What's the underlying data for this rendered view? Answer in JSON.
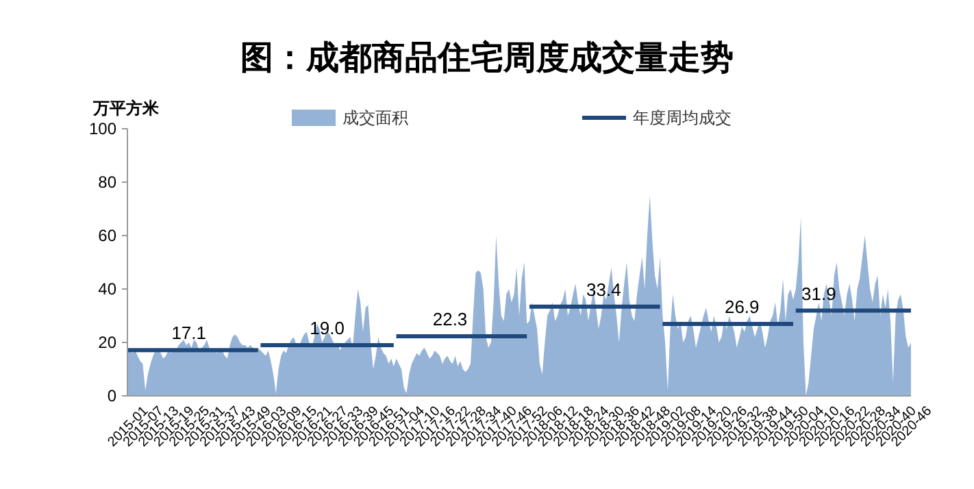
{
  "chart_data": {
    "type": "area",
    "title": "图：成都商品住宅周度成交量走势",
    "ylabel": "万平方米",
    "categories": [
      "2015-01",
      null,
      null,
      null,
      null,
      null,
      "2015-07",
      null,
      null,
      null,
      null,
      null,
      "2015-13",
      null,
      null,
      null,
      null,
      null,
      "2015-19",
      null,
      null,
      null,
      null,
      null,
      "2015-25",
      null,
      null,
      null,
      null,
      null,
      "2015-31",
      null,
      null,
      null,
      null,
      null,
      "2015-37",
      null,
      null,
      null,
      null,
      null,
      "2015-43",
      null,
      null,
      null,
      null,
      null,
      "2015-49",
      null,
      null,
      null,
      null,
      null,
      "2016-03",
      null,
      null,
      null,
      null,
      null,
      "2016-09",
      null,
      null,
      null,
      null,
      null,
      "2016-15",
      null,
      null,
      null,
      null,
      null,
      "2016-21",
      null,
      null,
      null,
      null,
      null,
      "2016-27",
      null,
      null,
      null,
      null,
      null,
      "2016-33",
      null,
      null,
      null,
      null,
      null,
      "2016-39",
      null,
      null,
      null,
      null,
      null,
      "2016-45",
      null,
      null,
      null,
      null,
      null,
      "2016-51",
      null,
      null,
      null,
      null,
      null,
      "2017-04",
      null,
      null,
      null,
      null,
      null,
      "2017-10",
      null,
      null,
      null,
      null,
      null,
      "2017-16",
      null,
      null,
      null,
      null,
      null,
      "2017-22",
      null,
      null,
      null,
      null,
      null,
      "2017-28",
      null,
      null,
      null,
      null,
      null,
      "2017-34",
      null,
      null,
      null,
      null,
      null,
      "2017-40",
      null,
      null,
      null,
      null,
      null,
      "2017-46",
      null,
      null,
      null,
      null,
      null,
      "2017-52",
      null,
      null,
      null,
      null,
      null,
      "2018-06",
      null,
      null,
      null,
      null,
      null,
      "2018-12",
      null,
      null,
      null,
      null,
      null,
      "2018-18",
      null,
      null,
      null,
      null,
      null,
      "2018-24",
      null,
      null,
      null,
      null,
      null,
      "2018-30",
      null,
      null,
      null,
      null,
      null,
      "2018-36",
      null,
      null,
      null,
      null,
      null,
      "2018-42",
      null,
      null,
      null,
      null,
      null,
      "2018-48",
      null,
      null,
      null,
      null,
      null,
      "2019-02",
      null,
      null,
      null,
      null,
      null,
      "2019-08",
      null,
      null,
      null,
      null,
      null,
      "2019-14",
      null,
      null,
      null,
      null,
      null,
      "2019-20",
      null,
      null,
      null,
      null,
      null,
      "2019-26",
      null,
      null,
      null,
      null,
      null,
      "2019-32",
      null,
      null,
      null,
      null,
      null,
      "2019-38",
      null,
      null,
      null,
      null,
      null,
      "2019-44",
      null,
      null,
      null,
      null,
      null,
      "2019-50",
      null,
      null,
      null,
      null,
      null,
      "2020-04",
      null,
      null,
      null,
      null,
      null,
      "2020-10",
      null,
      null,
      null,
      null,
      null,
      "2020-16",
      null,
      null,
      null,
      null,
      null,
      "2020-22",
      null,
      null,
      null,
      null,
      null,
      "2020-28",
      null,
      null,
      null,
      null,
      null,
      "2020-34",
      null,
      null,
      null,
      null,
      null,
      "2020-40",
      null,
      null,
      null,
      null,
      null,
      "2020-46"
    ],
    "series": [
      {
        "name": "成交面积",
        "color": "#95b3d7",
        "values": [
          18,
          17,
          16,
          17,
          15,
          13,
          12,
          2,
          8,
          12,
          15,
          17,
          18,
          16,
          14,
          15,
          17,
          16,
          18,
          17,
          19,
          20,
          21,
          19,
          20,
          18,
          21,
          20,
          17,
          18,
          19,
          21,
          18,
          17,
          18,
          16,
          18,
          17,
          15,
          14,
          19,
          22,
          23,
          22,
          20,
          19,
          19,
          18,
          19,
          18,
          17,
          18,
          17,
          16,
          15,
          17,
          13,
          8,
          1,
          10,
          15,
          17,
          16,
          19,
          21,
          22,
          19,
          18,
          21,
          23,
          24,
          20,
          18,
          22,
          27,
          25,
          20,
          22,
          24,
          23,
          21,
          19,
          20,
          17,
          19,
          20,
          21,
          22,
          18,
          30,
          40,
          35,
          24,
          33,
          34,
          20,
          10,
          15,
          22,
          18,
          16,
          15,
          12,
          14,
          11,
          14,
          12,
          10,
          3,
          1,
          8,
          12,
          14,
          16,
          15,
          17,
          18,
          16,
          14,
          15,
          17,
          16,
          15,
          12,
          14,
          15,
          13,
          12,
          15,
          11,
          13,
          10,
          9,
          10,
          12,
          30,
          46,
          47,
          46,
          40,
          22,
          18,
          20,
          35,
          60,
          42,
          30,
          28,
          38,
          40,
          35,
          38,
          48,
          30,
          44,
          50,
          27,
          28,
          35,
          30,
          25,
          12,
          8,
          20,
          30,
          32,
          35,
          28,
          30,
          34,
          36,
          40,
          30,
          33,
          38,
          42,
          35,
          30,
          38,
          36,
          28,
          34,
          40,
          33,
          25,
          30,
          38,
          36,
          42,
          48,
          38,
          30,
          20,
          33,
          42,
          50,
          36,
          30,
          28,
          38,
          45,
          52,
          40,
          60,
          75,
          58,
          45,
          40,
          52,
          30,
          20,
          2,
          25,
          38,
          30,
          25,
          28,
          20,
          22,
          28,
          30,
          25,
          18,
          22,
          26,
          30,
          33,
          28,
          24,
          30,
          26,
          20,
          22,
          28,
          25,
          30,
          27,
          24,
          18,
          22,
          26,
          24,
          28,
          30,
          26,
          22,
          25,
          28,
          24,
          18,
          22,
          28,
          30,
          35,
          26,
          32,
          44,
          28,
          38,
          40,
          36,
          40,
          50,
          67,
          20,
          0,
          5,
          15,
          25,
          30,
          35,
          28,
          38,
          42,
          36,
          30,
          45,
          50,
          40,
          35,
          30,
          38,
          42,
          36,
          28,
          40,
          44,
          52,
          60,
          50,
          40,
          35,
          42,
          45,
          30,
          38,
          33,
          40,
          28,
          5,
          30,
          36,
          38,
          32,
          22,
          18,
          20
        ]
      },
      {
        "name": "年度周均成交",
        "type": "line",
        "color": "#1f497d",
        "values": [
          17.1,
          17.1,
          17.1,
          17.1,
          17.1,
          17.1,
          17.1,
          17.1,
          17.1,
          17.1,
          17.1,
          17.1,
          17.1,
          17.1,
          17.1,
          17.1,
          17.1,
          17.1,
          17.1,
          17.1,
          17.1,
          17.1,
          17.1,
          17.1,
          17.1,
          17.1,
          17.1,
          17.1,
          17.1,
          17.1,
          17.1,
          17.1,
          17.1,
          17.1,
          17.1,
          17.1,
          17.1,
          17.1,
          17.1,
          17.1,
          17.1,
          17.1,
          17.1,
          17.1,
          17.1,
          17.1,
          17.1,
          17.1,
          17.1,
          17.1,
          17.1,
          17.1,
          19.0,
          19.0,
          19.0,
          19.0,
          19.0,
          19.0,
          19.0,
          19.0,
          19.0,
          19.0,
          19.0,
          19.0,
          19.0,
          19.0,
          19.0,
          19.0,
          19.0,
          19.0,
          19.0,
          19.0,
          19.0,
          19.0,
          19.0,
          19.0,
          19.0,
          19.0,
          19.0,
          19.0,
          19.0,
          19.0,
          19.0,
          19.0,
          19.0,
          19.0,
          19.0,
          19.0,
          19.0,
          19.0,
          19.0,
          19.0,
          19.0,
          19.0,
          19.0,
          19.0,
          19.0,
          19.0,
          19.0,
          19.0,
          19.0,
          19.0,
          19.0,
          19.0,
          19.0,
          22.3,
          22.3,
          22.3,
          22.3,
          22.3,
          22.3,
          22.3,
          22.3,
          22.3,
          22.3,
          22.3,
          22.3,
          22.3,
          22.3,
          22.3,
          22.3,
          22.3,
          22.3,
          22.3,
          22.3,
          22.3,
          22.3,
          22.3,
          22.3,
          22.3,
          22.3,
          22.3,
          22.3,
          22.3,
          22.3,
          22.3,
          22.3,
          22.3,
          22.3,
          22.3,
          22.3,
          22.3,
          22.3,
          22.3,
          22.3,
          22.3,
          22.3,
          22.3,
          22.3,
          22.3,
          22.3,
          22.3,
          22.3,
          22.3,
          22.3,
          22.3,
          22.3,
          33.4,
          33.4,
          33.4,
          33.4,
          33.4,
          33.4,
          33.4,
          33.4,
          33.4,
          33.4,
          33.4,
          33.4,
          33.4,
          33.4,
          33.4,
          33.4,
          33.4,
          33.4,
          33.4,
          33.4,
          33.4,
          33.4,
          33.4,
          33.4,
          33.4,
          33.4,
          33.4,
          33.4,
          33.4,
          33.4,
          33.4,
          33.4,
          33.4,
          33.4,
          33.4,
          33.4,
          33.4,
          33.4,
          33.4,
          33.4,
          33.4,
          33.4,
          33.4,
          33.4,
          33.4,
          33.4,
          33.4,
          33.4,
          33.4,
          33.4,
          33.4,
          33.4,
          26.9,
          26.9,
          26.9,
          26.9,
          26.9,
          26.9,
          26.9,
          26.9,
          26.9,
          26.9,
          26.9,
          26.9,
          26.9,
          26.9,
          26.9,
          26.9,
          26.9,
          26.9,
          26.9,
          26.9,
          26.9,
          26.9,
          26.9,
          26.9,
          26.9,
          26.9,
          26.9,
          26.9,
          26.9,
          26.9,
          26.9,
          26.9,
          26.9,
          26.9,
          26.9,
          26.9,
          26.9,
          26.9,
          26.9,
          26.9,
          26.9,
          26.9,
          26.9,
          26.9,
          26.9,
          26.9,
          26.9,
          26.9,
          26.9,
          26.9,
          26.9,
          26.9,
          31.9,
          31.9,
          31.9,
          31.9,
          31.9,
          31.9,
          31.9,
          31.9,
          31.9,
          31.9,
          31.9,
          31.9,
          31.9,
          31.9,
          31.9,
          31.9,
          31.9,
          31.9,
          31.9,
          31.9,
          31.9,
          31.9,
          31.9,
          31.9,
          31.9,
          31.9,
          31.9,
          31.9,
          31.9,
          31.9,
          31.9,
          31.9,
          31.9,
          31.9,
          31.9,
          31.9,
          31.9,
          31.9,
          31.9,
          31.9,
          31.9,
          31.9,
          31.9,
          31.9,
          31.9,
          31.9
        ]
      }
    ],
    "annotations": [
      {
        "text": "17.1",
        "x": "2015-25",
        "y": 17.1
      },
      {
        "text": "19.0",
        "x": "2016-27",
        "y": 19.0
      },
      {
        "text": "22.3",
        "x": "2017-22",
        "y": 22.3
      },
      {
        "text": "33.4",
        "x": "2018-30",
        "y": 33.4
      },
      {
        "text": "26.9",
        "x": "2019-32",
        "y": 26.9
      },
      {
        "text": "31.9",
        "x": "2020-10",
        "y": 31.9
      }
    ],
    "ylim": [
      0,
      100
    ],
    "yticks": [
      0,
      20,
      40,
      60,
      80,
      100
    ],
    "legend": "top"
  }
}
